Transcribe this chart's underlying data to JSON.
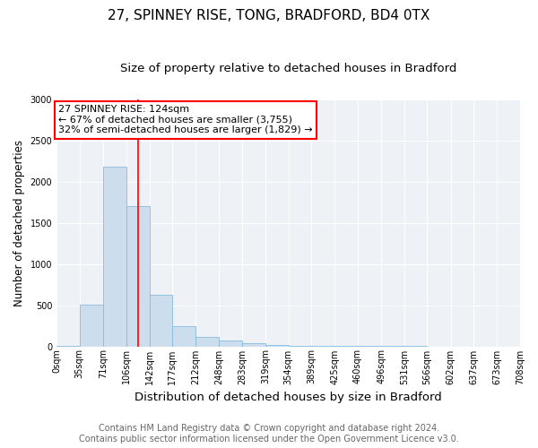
{
  "title1": "27, SPINNEY RISE, TONG, BRADFORD, BD4 0TX",
  "title2": "Size of property relative to detached houses in Bradford",
  "xlabel": "Distribution of detached houses by size in Bradford",
  "ylabel": "Number of detached properties",
  "bin_labels": [
    "0sqm",
    "35sqm",
    "71sqm",
    "106sqm",
    "142sqm",
    "177sqm",
    "212sqm",
    "248sqm",
    "283sqm",
    "319sqm",
    "354sqm",
    "389sqm",
    "425sqm",
    "460sqm",
    "496sqm",
    "531sqm",
    "566sqm",
    "602sqm",
    "637sqm",
    "673sqm",
    "708sqm"
  ],
  "bin_edges": [
    0,
    35,
    71,
    106,
    142,
    177,
    212,
    248,
    283,
    319,
    354,
    389,
    425,
    460,
    496,
    531,
    566,
    602,
    637,
    673,
    708
  ],
  "bar_values": [
    5,
    510,
    2175,
    1700,
    630,
    245,
    110,
    75,
    40,
    20,
    10,
    5,
    3,
    2,
    1,
    1,
    0,
    0,
    0,
    0
  ],
  "bar_color": "#ccdded",
  "bar_edgecolor": "#88bbdd",
  "property_line_x": 124,
  "annotation_text": "27 SPINNEY RISE: 124sqm\n← 67% of detached houses are smaller (3,755)\n32% of semi-detached houses are larger (1,829) →",
  "annotation_box_color": "white",
  "annotation_box_edgecolor": "red",
  "vline_color": "red",
  "ylim": [
    0,
    3000
  ],
  "yticks": [
    0,
    500,
    1000,
    1500,
    2000,
    2500,
    3000
  ],
  "background_color": "#eef2f7",
  "footer1": "Contains HM Land Registry data © Crown copyright and database right 2024.",
  "footer2": "Contains public sector information licensed under the Open Government Licence v3.0.",
  "title1_fontsize": 11,
  "title2_fontsize": 9.5,
  "xlabel_fontsize": 9.5,
  "ylabel_fontsize": 8.5,
  "annotation_fontsize": 8,
  "footer_fontsize": 7,
  "tick_fontsize": 7
}
